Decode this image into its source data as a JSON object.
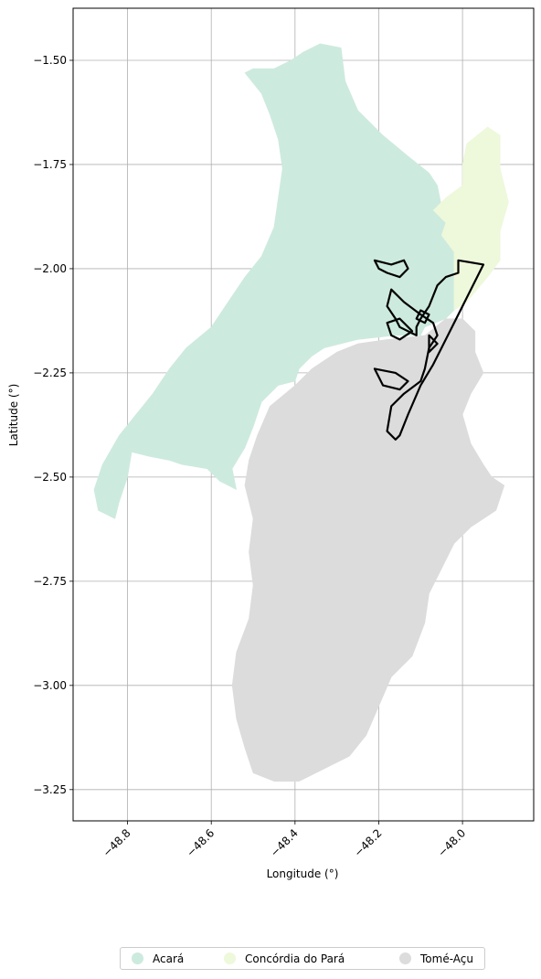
{
  "chart_data": {
    "type": "map",
    "xlabel": "Longitude (°)",
    "ylabel": "Latitude (°)",
    "xlim": [
      -48.93,
      -47.83
    ],
    "ylim": [
      -3.325,
      -1.375
    ],
    "x_ticks": [
      -48.8,
      -48.6,
      -48.4,
      -48.2,
      -48.0
    ],
    "x_tick_labels": [
      "−48.8",
      "−48.6",
      "−48.4",
      "−48.2",
      "−48.0"
    ],
    "y_ticks": [
      -1.5,
      -1.75,
      -2.0,
      -2.25,
      -2.5,
      -2.75,
      -3.0,
      -3.25
    ],
    "y_tick_labels": [
      "−1.50",
      "−1.75",
      "−2.00",
      "−2.25",
      "−2.50",
      "−2.75",
      "−3.00",
      "−3.25"
    ],
    "grid": true,
    "legend_position": "bottom-center",
    "regions": [
      {
        "name": "Acará",
        "color": "#cdeade",
        "polygon": [
          [
            -48.34,
            -1.46
          ],
          [
            -48.29,
            -1.47
          ],
          [
            -48.28,
            -1.55
          ],
          [
            -48.25,
            -1.62
          ],
          [
            -48.19,
            -1.68
          ],
          [
            -48.13,
            -1.73
          ],
          [
            -48.08,
            -1.77
          ],
          [
            -48.06,
            -1.8
          ],
          [
            -48.05,
            -1.85
          ],
          [
            -48.04,
            -1.89
          ],
          [
            -48.05,
            -1.92
          ],
          [
            -48.02,
            -1.96
          ],
          [
            -48.02,
            -2.1
          ],
          [
            -48.04,
            -2.12
          ],
          [
            -48.09,
            -2.14
          ],
          [
            -48.1,
            -2.16
          ],
          [
            -48.16,
            -2.16
          ],
          [
            -48.25,
            -2.17
          ],
          [
            -48.33,
            -2.19
          ],
          [
            -48.36,
            -2.21
          ],
          [
            -48.39,
            -2.24
          ],
          [
            -48.4,
            -2.27
          ],
          [
            -48.44,
            -2.28
          ],
          [
            -48.48,
            -2.32
          ],
          [
            -48.5,
            -2.38
          ],
          [
            -48.52,
            -2.43
          ],
          [
            -48.55,
            -2.48
          ],
          [
            -48.54,
            -2.53
          ],
          [
            -48.58,
            -2.51
          ],
          [
            -48.61,
            -2.48
          ],
          [
            -48.67,
            -2.47
          ],
          [
            -48.7,
            -2.46
          ],
          [
            -48.75,
            -2.45
          ],
          [
            -48.79,
            -2.44
          ],
          [
            -48.8,
            -2.5
          ],
          [
            -48.82,
            -2.56
          ],
          [
            -48.83,
            -2.6
          ],
          [
            -48.87,
            -2.58
          ],
          [
            -48.88,
            -2.53
          ],
          [
            -48.86,
            -2.47
          ],
          [
            -48.82,
            -2.4
          ],
          [
            -48.78,
            -2.35
          ],
          [
            -48.74,
            -2.3
          ],
          [
            -48.7,
            -2.24
          ],
          [
            -48.66,
            -2.19
          ],
          [
            -48.6,
            -2.14
          ],
          [
            -48.56,
            -2.08
          ],
          [
            -48.52,
            -2.02
          ],
          [
            -48.48,
            -1.97
          ],
          [
            -48.45,
            -1.9
          ],
          [
            -48.44,
            -1.83
          ],
          [
            -48.43,
            -1.76
          ],
          [
            -48.44,
            -1.69
          ],
          [
            -48.46,
            -1.63
          ],
          [
            -48.48,
            -1.58
          ],
          [
            -48.52,
            -1.53
          ],
          [
            -48.5,
            -1.52
          ],
          [
            -48.45,
            -1.52
          ],
          [
            -48.41,
            -1.5
          ],
          [
            -48.38,
            -1.48
          ]
        ]
      },
      {
        "name": "Concórdia do Pará",
        "color": "#eef8db",
        "polygon": [
          [
            -47.99,
            -1.7
          ],
          [
            -47.94,
            -1.66
          ],
          [
            -47.91,
            -1.68
          ],
          [
            -47.91,
            -1.76
          ],
          [
            -47.89,
            -1.84
          ],
          [
            -47.91,
            -1.91
          ],
          [
            -47.91,
            -1.98
          ],
          [
            -47.94,
            -2.02
          ],
          [
            -47.99,
            -2.08
          ],
          [
            -48.02,
            -2.1
          ],
          [
            -48.02,
            -1.96
          ],
          [
            -48.05,
            -1.92
          ],
          [
            -48.04,
            -1.89
          ],
          [
            -48.07,
            -1.86
          ],
          [
            -48.04,
            -1.83
          ],
          [
            -48.0,
            -1.8
          ],
          [
            -48.0,
            -1.75
          ]
        ]
      },
      {
        "name": "Tomé-Açu",
        "color": "#dcdcdc",
        "polygon": [
          [
            -48.25,
            -2.18
          ],
          [
            -48.18,
            -2.17
          ],
          [
            -48.09,
            -2.16
          ],
          [
            -48.04,
            -2.12
          ],
          [
            -48.0,
            -2.12
          ],
          [
            -47.97,
            -2.15
          ],
          [
            -47.97,
            -2.2
          ],
          [
            -47.95,
            -2.25
          ],
          [
            -47.98,
            -2.3
          ],
          [
            -48.0,
            -2.35
          ],
          [
            -47.98,
            -2.42
          ],
          [
            -47.95,
            -2.47
          ],
          [
            -47.93,
            -2.5
          ],
          [
            -47.9,
            -2.52
          ],
          [
            -47.92,
            -2.58
          ],
          [
            -47.98,
            -2.62
          ],
          [
            -48.02,
            -2.66
          ],
          [
            -48.05,
            -2.72
          ],
          [
            -48.08,
            -2.78
          ],
          [
            -48.09,
            -2.85
          ],
          [
            -48.12,
            -2.93
          ],
          [
            -48.17,
            -2.98
          ],
          [
            -48.2,
            -3.05
          ],
          [
            -48.23,
            -3.12
          ],
          [
            -48.27,
            -3.17
          ],
          [
            -48.33,
            -3.2
          ],
          [
            -48.39,
            -3.23
          ],
          [
            -48.45,
            -3.23
          ],
          [
            -48.5,
            -3.21
          ],
          [
            -48.52,
            -3.15
          ],
          [
            -48.54,
            -3.08
          ],
          [
            -48.55,
            -3.0
          ],
          [
            -48.54,
            -2.92
          ],
          [
            -48.51,
            -2.84
          ],
          [
            -48.5,
            -2.76
          ],
          [
            -48.51,
            -2.68
          ],
          [
            -48.5,
            -2.6
          ],
          [
            -48.52,
            -2.52
          ],
          [
            -48.51,
            -2.46
          ],
          [
            -48.49,
            -2.4
          ],
          [
            -48.46,
            -2.33
          ],
          [
            -48.4,
            -2.28
          ],
          [
            -48.36,
            -2.24
          ],
          [
            -48.3,
            -2.2
          ]
        ]
      }
    ],
    "outline": {
      "color": "#000000",
      "polygons": [
        [
          [
            -48.01,
            -1.98
          ],
          [
            -47.95,
            -1.99
          ],
          [
            -48.03,
            -2.15
          ],
          [
            -48.07,
            -2.23
          ],
          [
            -48.1,
            -2.28
          ],
          [
            -48.13,
            -2.35
          ],
          [
            -48.15,
            -2.4
          ],
          [
            -48.16,
            -2.41
          ],
          [
            -48.18,
            -2.39
          ],
          [
            -48.17,
            -2.33
          ],
          [
            -48.14,
            -2.3
          ],
          [
            -48.1,
            -2.27
          ],
          [
            -48.09,
            -2.24
          ],
          [
            -48.08,
            -2.19
          ],
          [
            -48.06,
            -2.16
          ],
          [
            -48.07,
            -2.13
          ],
          [
            -48.1,
            -2.11
          ],
          [
            -48.14,
            -2.08
          ],
          [
            -48.17,
            -2.05
          ],
          [
            -48.18,
            -2.09
          ],
          [
            -48.16,
            -2.12
          ],
          [
            -48.15,
            -2.14
          ],
          [
            -48.11,
            -2.16
          ],
          [
            -48.11,
            -2.14
          ],
          [
            -48.1,
            -2.12
          ],
          [
            -48.08,
            -2.09
          ],
          [
            -48.06,
            -2.04
          ],
          [
            -48.04,
            -2.02
          ],
          [
            -48.01,
            -2.01
          ]
        ],
        [
          [
            -48.21,
            -1.98
          ],
          [
            -48.17,
            -1.99
          ],
          [
            -48.14,
            -1.98
          ],
          [
            -48.13,
            -2.0
          ],
          [
            -48.15,
            -2.02
          ],
          [
            -48.18,
            -2.01
          ],
          [
            -48.2,
            -2.0
          ]
        ],
        [
          [
            -48.18,
            -2.13
          ],
          [
            -48.15,
            -2.12
          ],
          [
            -48.12,
            -2.15
          ],
          [
            -48.15,
            -2.17
          ],
          [
            -48.17,
            -2.16
          ]
        ],
        [
          [
            -48.21,
            -2.24
          ],
          [
            -48.16,
            -2.25
          ],
          [
            -48.13,
            -2.27
          ],
          [
            -48.15,
            -2.29
          ],
          [
            -48.19,
            -2.28
          ]
        ],
        [
          [
            -48.1,
            -2.1
          ],
          [
            -48.08,
            -2.11
          ],
          [
            -48.09,
            -2.13
          ],
          [
            -48.11,
            -2.12
          ]
        ],
        [
          [
            -48.08,
            -2.16
          ],
          [
            -48.06,
            -2.18
          ],
          [
            -48.08,
            -2.2
          ]
        ]
      ]
    }
  },
  "legend": {
    "items": [
      {
        "label": "Acará",
        "color": "#cdeade"
      },
      {
        "label": "Concórdia do Pará",
        "color": "#eef8db"
      },
      {
        "label": "Tomé-Açu",
        "color": "#dcdcdc"
      }
    ]
  }
}
